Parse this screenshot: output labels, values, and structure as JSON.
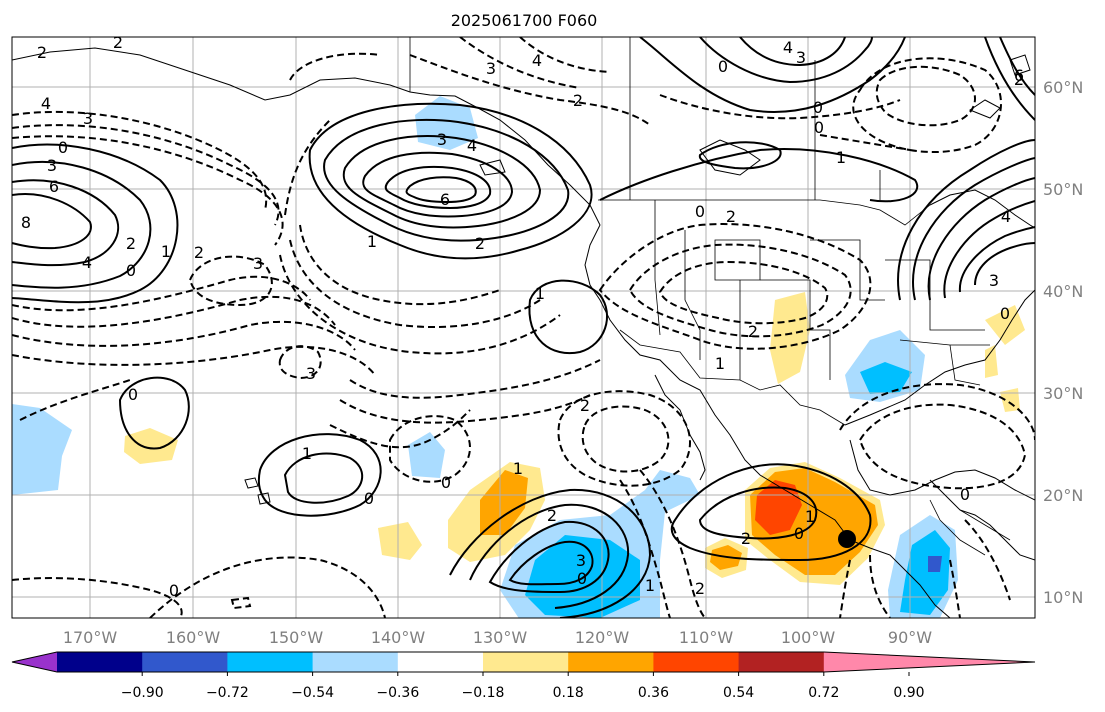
{
  "title": "2025061700 F060",
  "map": {
    "lon_ticks": [
      "170°W",
      "160°W",
      "150°W",
      "140°W",
      "130°W",
      "120°W",
      "110°W",
      "100°W",
      "90°W"
    ],
    "lat_ticks": [
      "60°N",
      "50°N",
      "40°N",
      "30°N",
      "20°N",
      "10°N"
    ],
    "contour_labels": [
      {
        "text": "2"
      },
      {
        "text": "2"
      },
      {
        "text": "4"
      },
      {
        "text": "3"
      },
      {
        "text": "3"
      },
      {
        "text": "0"
      },
      {
        "text": "6"
      },
      {
        "text": "8"
      },
      {
        "text": "4"
      },
      {
        "text": "2"
      },
      {
        "text": "0"
      },
      {
        "text": "1"
      },
      {
        "text": "2"
      },
      {
        "text": "3"
      },
      {
        "text": "3"
      },
      {
        "text": "0"
      },
      {
        "text": "1"
      },
      {
        "text": "0"
      },
      {
        "text": "3"
      },
      {
        "text": "4"
      },
      {
        "text": "6"
      },
      {
        "text": "2"
      },
      {
        "text": "1"
      },
      {
        "text": "1"
      },
      {
        "text": "3"
      },
      {
        "text": "4"
      },
      {
        "text": "2"
      },
      {
        "text": "2"
      },
      {
        "text": "1"
      },
      {
        "text": "2"
      },
      {
        "text": "3"
      },
      {
        "text": "0"
      },
      {
        "text": "0"
      },
      {
        "text": "2"
      },
      {
        "text": "1"
      },
      {
        "text": "1"
      },
      {
        "text": "2"
      },
      {
        "text": "2"
      },
      {
        "text": "0"
      },
      {
        "text": "1"
      },
      {
        "text": "0"
      },
      {
        "text": "1"
      },
      {
        "text": "0"
      },
      {
        "text": "4"
      },
      {
        "text": "3"
      },
      {
        "text": "2"
      },
      {
        "text": "0"
      },
      {
        "text": "0"
      },
      {
        "text": "3"
      },
      {
        "text": "4"
      },
      {
        "text": "0"
      },
      {
        "text": "0"
      },
      {
        "text": "2"
      },
      {
        "text": "6"
      },
      {
        "text": "0"
      }
    ],
    "marker": "storm-center-dot"
  },
  "colorbar": {
    "colors": [
      "#9932cc",
      "#00008b",
      "#3158cc",
      "#00bfff",
      "#aadcff",
      "#ffffff",
      "#ffe98f",
      "#ffa500",
      "#ff4500",
      "#b22222",
      "#ff88aa"
    ],
    "tick_labels": [
      "−0.90",
      "−0.72",
      "−0.54",
      "−0.36",
      "−0.18",
      "0.18",
      "0.36",
      "0.54",
      "0.72",
      "0.90"
    ]
  },
  "colors": {
    "positive_contour": "#000000",
    "negative_contour": "#000000",
    "grid": "#b0b0b0",
    "axis_label": "#808080"
  }
}
